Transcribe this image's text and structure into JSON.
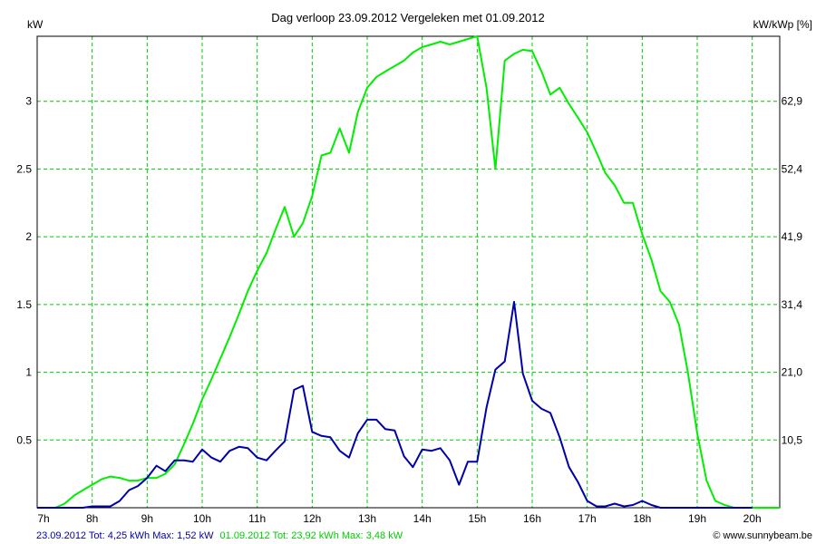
{
  "chart_data": {
    "type": "line",
    "title": "Dag  verloop 23.09.2012   Vergeleken met 01.09.2012",
    "ylabel_left": "kW",
    "ylabel_right": "kW/kWp [%]",
    "x_ticks": [
      "7h",
      "8h",
      "9h",
      "10h",
      "11h",
      "12h",
      "13h",
      "14h",
      "15h",
      "16h",
      "17h",
      "18h",
      "19h",
      "20h"
    ],
    "y_ticks_left": [
      "0.5",
      "1",
      "1.5",
      "2",
      "2.5",
      "3"
    ],
    "y_ticks_right": [
      "10,5",
      "21,0",
      "31,4",
      "41,9",
      "52,4",
      "62,9"
    ],
    "xlim": [
      7,
      20.5
    ],
    "ylim": [
      0,
      3.48
    ],
    "grid": true,
    "series": [
      {
        "name": "23.09.2012 Tot: 4,25 kWh Max: 1,52 kW",
        "color": "#0000aa",
        "x": [
          7.0,
          7.17,
          7.33,
          7.5,
          7.67,
          7.83,
          8.0,
          8.17,
          8.33,
          8.5,
          8.67,
          8.83,
          9.0,
          9.17,
          9.33,
          9.5,
          9.67,
          9.83,
          10.0,
          10.17,
          10.33,
          10.5,
          10.67,
          10.83,
          11.0,
          11.17,
          11.33,
          11.5,
          11.67,
          11.83,
          12.0,
          12.17,
          12.33,
          12.5,
          12.67,
          12.83,
          13.0,
          13.17,
          13.33,
          13.5,
          13.67,
          13.83,
          14.0,
          14.17,
          14.33,
          14.5,
          14.67,
          14.83,
          15.0,
          15.17,
          15.33,
          15.5,
          15.67,
          15.83,
          16.0,
          16.17,
          16.33,
          16.5,
          16.67,
          16.83,
          17.0,
          17.17,
          17.33,
          17.5,
          17.67,
          17.83,
          18.0,
          18.17,
          18.33,
          18.5,
          18.67,
          18.83,
          19.0,
          19.17,
          19.33,
          19.5,
          19.67,
          19.83,
          20.0
        ],
        "values": [
          0,
          0,
          0,
          0,
          0,
          0,
          0.01,
          0.01,
          0.01,
          0.05,
          0.13,
          0.16,
          0.22,
          0.31,
          0.27,
          0.35,
          0.35,
          0.34,
          0.43,
          0.37,
          0.34,
          0.42,
          0.45,
          0.44,
          0.37,
          0.35,
          0.42,
          0.49,
          0.87,
          0.9,
          0.56,
          0.53,
          0.52,
          0.42,
          0.37,
          0.55,
          0.65,
          0.65,
          0.58,
          0.57,
          0.38,
          0.3,
          0.43,
          0.42,
          0.44,
          0.35,
          0.17,
          0.34,
          0.34,
          0.74,
          1.02,
          1.08,
          1.52,
          0.99,
          0.79,
          0.73,
          0.7,
          0.52,
          0.3,
          0.19,
          0.05,
          0.01,
          0.01,
          0.03,
          0.01,
          0.02,
          0.05,
          0.02,
          0,
          0,
          0,
          0,
          0,
          0,
          0,
          0,
          0,
          0,
          0
        ]
      },
      {
        "name": "01.09.2012 Tot: 23,92 kWh Max: 3,48 kW",
        "color": "#00ee00",
        "x": [
          7.0,
          7.17,
          7.33,
          7.5,
          7.67,
          7.83,
          8.0,
          8.17,
          8.33,
          8.5,
          8.67,
          8.83,
          9.0,
          9.17,
          9.33,
          9.5,
          9.67,
          9.83,
          10.0,
          10.17,
          10.33,
          10.5,
          10.67,
          10.83,
          11.0,
          11.17,
          11.33,
          11.5,
          11.67,
          11.83,
          12.0,
          12.17,
          12.33,
          12.5,
          12.67,
          12.83,
          13.0,
          13.17,
          13.33,
          13.5,
          13.67,
          13.83,
          14.0,
          14.17,
          14.33,
          14.5,
          14.67,
          14.83,
          15.0,
          15.17,
          15.33,
          15.5,
          15.67,
          15.83,
          16.0,
          16.17,
          16.33,
          16.5,
          16.67,
          16.83,
          17.0,
          17.17,
          17.33,
          17.5,
          17.67,
          17.83,
          18.0,
          18.17,
          18.33,
          18.5,
          18.67,
          18.83,
          19.0,
          19.17,
          19.33,
          19.5,
          19.67,
          19.83,
          20.0,
          20.17,
          20.33,
          20.5
        ],
        "values": [
          0,
          0,
          0,
          0.03,
          0.09,
          0.13,
          0.17,
          0.21,
          0.23,
          0.22,
          0.2,
          0.2,
          0.22,
          0.22,
          0.25,
          0.32,
          0.47,
          0.62,
          0.8,
          0.95,
          1.1,
          1.26,
          1.43,
          1.6,
          1.75,
          1.88,
          2.05,
          2.22,
          2.0,
          2.1,
          2.3,
          2.6,
          2.62,
          2.8,
          2.62,
          2.92,
          3.1,
          3.18,
          3.22,
          3.26,
          3.3,
          3.36,
          3.4,
          3.42,
          3.44,
          3.42,
          3.44,
          3.46,
          3.48,
          3.1,
          2.5,
          3.3,
          3.35,
          3.38,
          3.37,
          3.22,
          3.05,
          3.1,
          2.98,
          2.88,
          2.77,
          2.62,
          2.47,
          2.38,
          2.25,
          2.25,
          2.02,
          1.83,
          1.6,
          1.52,
          1.35,
          1.0,
          0.55,
          0.2,
          0.05,
          0.02,
          0,
          0,
          0,
          0,
          0,
          0
        ]
      }
    ]
  },
  "footer": {
    "legend_a": "23.09.2012 Tot: 4,25 kWh Max: 1,52 kW",
    "legend_b": "01.09.2012 Tot: 23,92 kWh Max: 3,48 kW",
    "credit": "© www.sunnybeam.be"
  }
}
